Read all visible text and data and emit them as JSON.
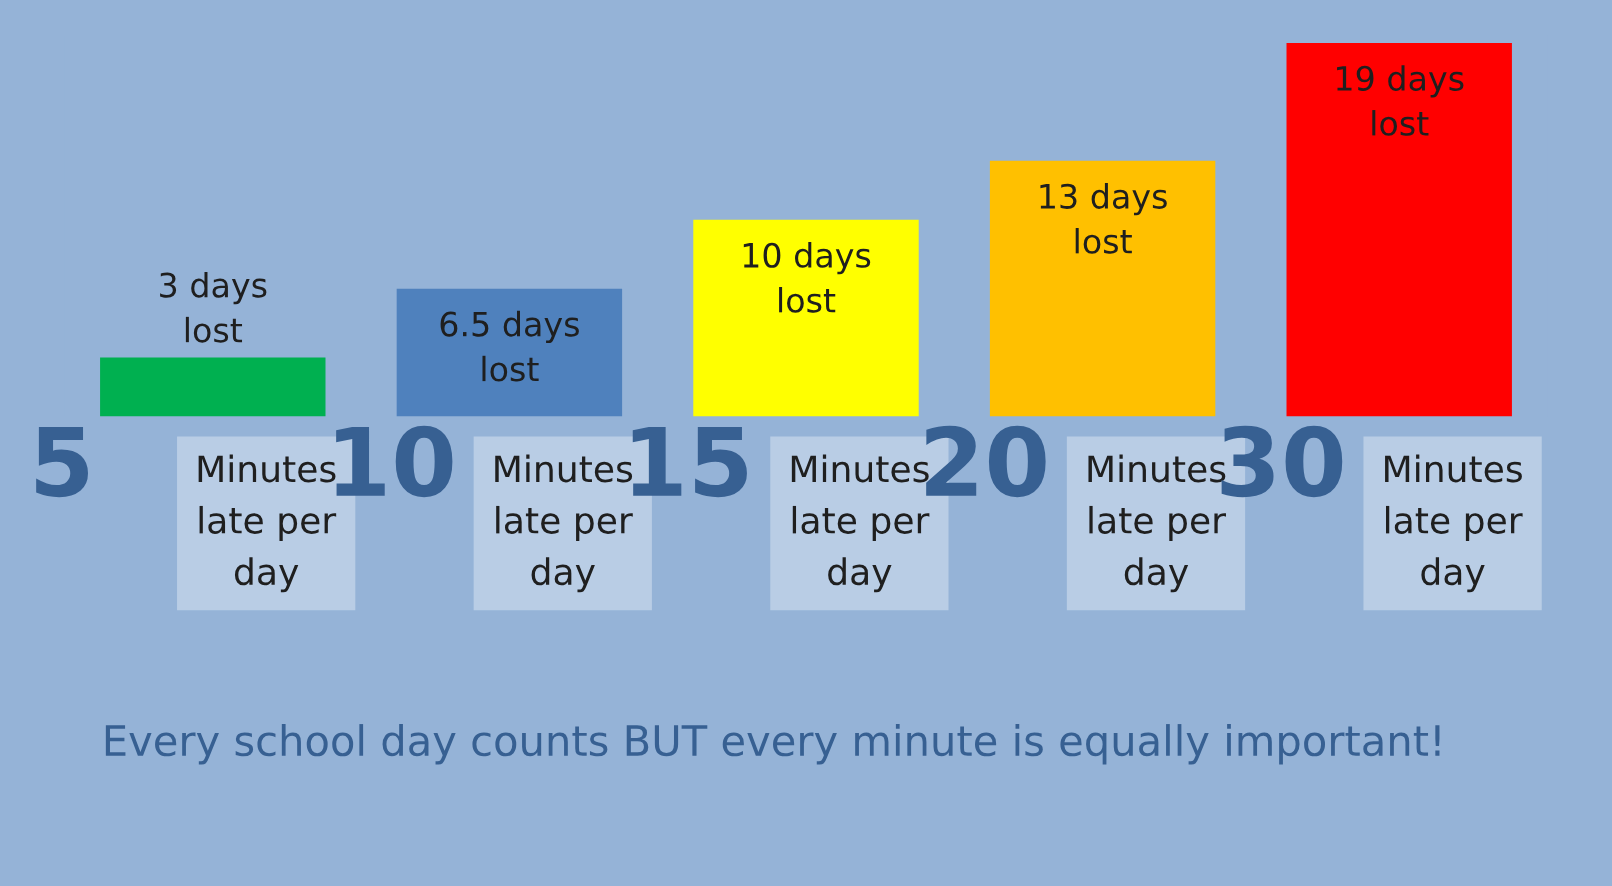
{
  "chart_data": {
    "type": "bar",
    "categories": [
      "5",
      "10",
      "15",
      "20",
      "30"
    ],
    "values": [
      3,
      6.5,
      10,
      13,
      19
    ],
    "colors": [
      "#00b050",
      "#4f81bd",
      "#ffff00",
      "#ffc000",
      "#ff0000"
    ],
    "value_labels": [
      "3 days\nlost",
      "6.5 days\nlost",
      "10 days\nlost",
      "13 days\nlost",
      "19 days\nlost"
    ],
    "annotations": [
      "Minutes\nlate per\nday",
      "Minutes\nlate per\nday",
      "Minutes\nlate per\nday",
      "Minutes\nlate per\nday",
      "Minutes\nlate per\nday",
      "Every school day counts BUT every minute is equally important!"
    ],
    "legend": false
  }
}
